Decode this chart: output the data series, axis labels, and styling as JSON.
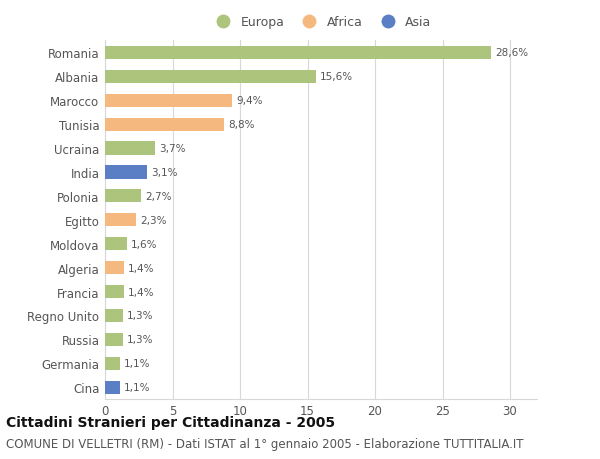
{
  "categories": [
    "Romania",
    "Albania",
    "Marocco",
    "Tunisia",
    "Ucraina",
    "India",
    "Polonia",
    "Egitto",
    "Moldova",
    "Algeria",
    "Francia",
    "Regno Unito",
    "Russia",
    "Germania",
    "Cina"
  ],
  "values": [
    28.6,
    15.6,
    9.4,
    8.8,
    3.7,
    3.1,
    2.7,
    2.3,
    1.6,
    1.4,
    1.4,
    1.3,
    1.3,
    1.1,
    1.1
  ],
  "labels": [
    "28,6%",
    "15,6%",
    "9,4%",
    "8,8%",
    "3,7%",
    "3,1%",
    "2,7%",
    "2,3%",
    "1,6%",
    "1,4%",
    "1,4%",
    "1,3%",
    "1,3%",
    "1,1%",
    "1,1%"
  ],
  "continents": [
    "Europa",
    "Europa",
    "Africa",
    "Africa",
    "Europa",
    "Asia",
    "Europa",
    "Africa",
    "Europa",
    "Africa",
    "Europa",
    "Europa",
    "Europa",
    "Europa",
    "Asia"
  ],
  "colors": {
    "Europa": "#adc47d",
    "Africa": "#f5b97f",
    "Asia": "#5b7fc4"
  },
  "xlim": [
    0,
    32
  ],
  "xticks": [
    0,
    5,
    10,
    15,
    20,
    25,
    30
  ],
  "background_color": "#ffffff",
  "grid_color": "#d8d8d8",
  "title": "Cittadini Stranieri per Cittadinanza - 2005",
  "subtitle": "COMUNE DI VELLETRI (RM) - Dati ISTAT al 1° gennaio 2005 - Elaborazione TUTTITALIA.IT",
  "title_fontsize": 10,
  "subtitle_fontsize": 8.5,
  "bar_height": 0.55,
  "figsize": [
    6.0,
    4.6
  ],
  "dpi": 100
}
